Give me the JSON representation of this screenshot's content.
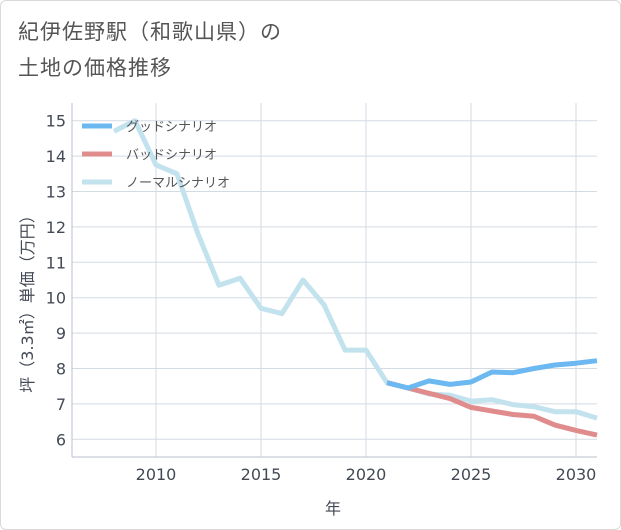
{
  "chart_data": {
    "type": "line",
    "title": "紀伊佐野駅（和歌山県）の土地の価格推移",
    "title_lines": [
      "紀伊佐野駅（和歌山県）の",
      "土地の価格推移"
    ],
    "xlabel": "年",
    "ylabel": "坪（3.3㎡）単価（万円）",
    "xlim": [
      2006,
      2031
    ],
    "ylim": [
      5.5,
      15.5
    ],
    "x_ticks": [
      2010,
      2015,
      2020,
      2025,
      2030
    ],
    "y_ticks": [
      6,
      7,
      8,
      9,
      10,
      11,
      12,
      13,
      14,
      15
    ],
    "grid": true,
    "legend_position": "top-left",
    "series": [
      {
        "name": "グッドシナリオ",
        "color": "#6cb8f0",
        "x": [
          2021,
          2022,
          2023,
          2024,
          2025,
          2026,
          2027,
          2028,
          2029,
          2030,
          2031
        ],
        "values": [
          7.6,
          7.45,
          7.65,
          7.55,
          7.62,
          7.9,
          7.88,
          8.0,
          8.1,
          8.15,
          8.22
        ]
      },
      {
        "name": "バッドシナリオ",
        "color": "#e08c8c",
        "x": [
          2021,
          2022,
          2023,
          2024,
          2025,
          2026,
          2027,
          2028,
          2029,
          2030,
          2031
        ],
        "values": [
          7.6,
          7.45,
          7.3,
          7.15,
          6.9,
          6.8,
          6.7,
          6.65,
          6.4,
          6.25,
          6.12
        ]
      },
      {
        "name": "ノーマルシナリオ",
        "color": "#c2e2ee",
        "x": [
          2008,
          2009,
          2010,
          2011,
          2012,
          2013,
          2014,
          2015,
          2016,
          2017,
          2018,
          2019,
          2020,
          2021,
          2022,
          2023,
          2024,
          2025,
          2026,
          2027,
          2028,
          2029,
          2030,
          2031
        ],
        "values": [
          14.7,
          15.0,
          13.75,
          13.5,
          11.8,
          10.35,
          10.55,
          9.7,
          9.55,
          10.5,
          9.8,
          8.52,
          8.52,
          7.6,
          7.45,
          7.28,
          7.25,
          7.08,
          7.12,
          6.98,
          6.92,
          6.78,
          6.78,
          6.6
        ]
      }
    ]
  }
}
